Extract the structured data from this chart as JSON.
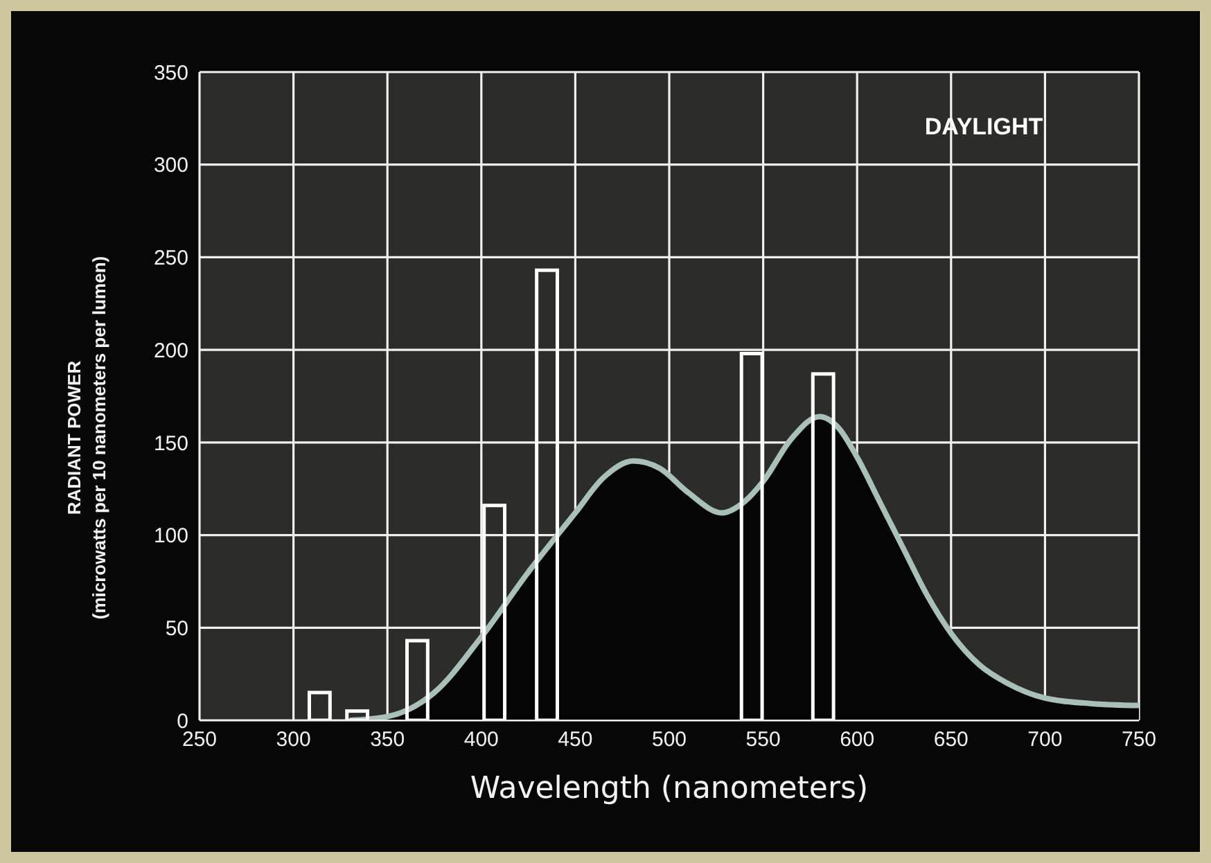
{
  "chart_data": {
    "type": "area",
    "title": null,
    "xlabel": "Wavelength (nanometers)",
    "ylabel": "RADIANT POWER\n(microwatts per 10 nanometers per lumen)",
    "annotations": [
      "DAYLIGHT"
    ],
    "xlim": [
      250,
      750
    ],
    "xticks": [
      250,
      300,
      350,
      400,
      450,
      500,
      550,
      600,
      650,
      700,
      750
    ],
    "ylim": [
      0,
      350
    ],
    "yticks": [
      0,
      50,
      100,
      150,
      200,
      250,
      300,
      350
    ],
    "grid": true,
    "series": [
      {
        "type": "bar",
        "color": "#ffffff",
        "x": [
          314,
          334,
          366,
          407,
          435,
          544,
          582
        ],
        "values": [
          15,
          5,
          43,
          116,
          243,
          198,
          187
        ]
      },
      {
        "color": "#a9bfb9",
        "x": [
          330,
          350,
          375,
          400,
          425,
          450,
          465,
          481,
          495,
          510,
          528,
          540,
          550,
          565,
          580,
          590,
          600,
          612,
          625,
          637,
          650,
          665,
          680,
          700,
          725,
          750
        ],
        "values": [
          0,
          2,
          15,
          45,
          80,
          112,
          131,
          140,
          136,
          123,
          112,
          118,
          129,
          152,
          164,
          158,
          142,
          118,
          92,
          68,
          47,
          30,
          20,
          12,
          9,
          8
        ]
      }
    ]
  }
}
